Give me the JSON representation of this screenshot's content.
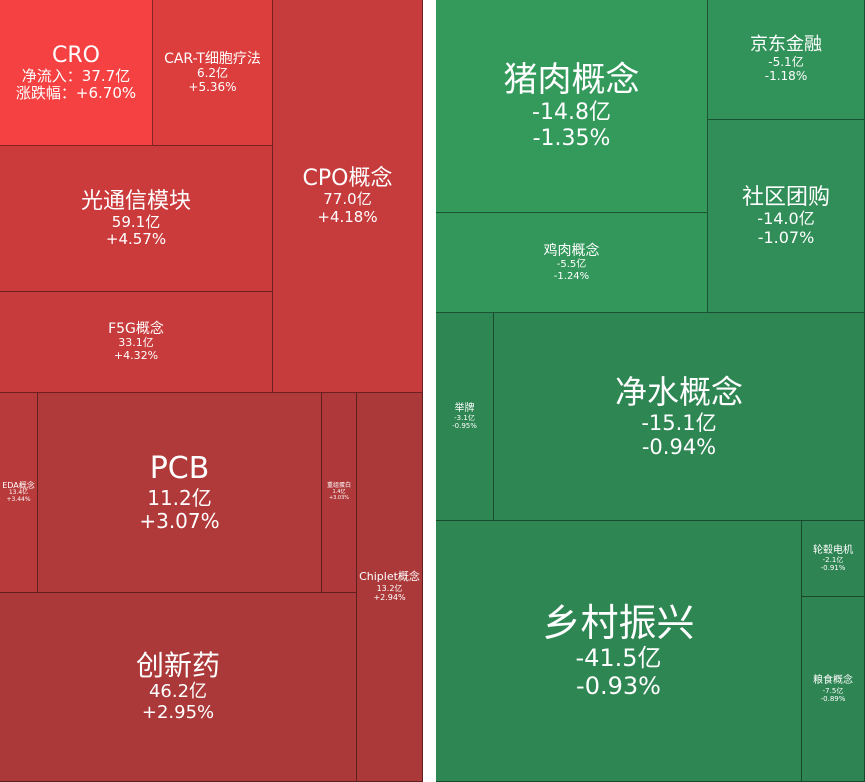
{
  "chart_data": [
    {
      "type": "treemap",
      "panel": "gainers",
      "items": [
        {
          "name": "CRO",
          "flow_label": "净流入：",
          "flow": "37.7亿",
          "change_label": "涨跌幅：",
          "change": "+6.70%",
          "color": "#f54141"
        },
        {
          "name": "CAR-T细胞疗法",
          "flow": "6.2亿",
          "change": "+5.36%",
          "color": "#dc3d3d"
        },
        {
          "name": "CPO概念",
          "flow": "77.0亿",
          "change": "+4.18%",
          "color": "#c63b3c"
        },
        {
          "name": "光通信模块",
          "flow": "59.1亿",
          "change": "+4.57%",
          "color": "#cb3b3c"
        },
        {
          "name": "F5G概念",
          "flow": "33.1亿",
          "change": "+4.32%",
          "color": "#c83b3c"
        },
        {
          "name": "EDA概念",
          "flow": "13.4亿",
          "change": "+3.44%",
          "color": "#b93a3b"
        },
        {
          "name": "PCB",
          "flow": "11.2亿",
          "change": "+3.07%",
          "color": "#b0393a"
        },
        {
          "name": "重组蛋白",
          "flow": "1.4亿",
          "change": "+3.03%",
          "color": "#af393a"
        },
        {
          "name": "Chiplet概念",
          "flow": "13.2亿",
          "change": "+2.94%",
          "color": "#ab393a"
        },
        {
          "name": "创新药",
          "flow": "46.2亿",
          "change": "+2.95%",
          "color": "#ab393a"
        }
      ]
    },
    {
      "type": "treemap",
      "panel": "losers",
      "items": [
        {
          "name": "猪肉概念",
          "flow": "-14.8亿",
          "change": "-1.35%",
          "color": "#349a5c"
        },
        {
          "name": "京东金融",
          "flow": "-5.1亿",
          "change": "-1.18%",
          "color": "#32935a"
        },
        {
          "name": "社区团购",
          "flow": "-14.0亿",
          "change": "-1.07%",
          "color": "#318e58"
        },
        {
          "name": "鸡肉概念",
          "flow": "-5.5亿",
          "change": "-1.24%",
          "color": "#33975b"
        },
        {
          "name": "举牌",
          "flow": "-3.1亿",
          "change": "-0.95%",
          "color": "#2e8653"
        },
        {
          "name": "净水概念",
          "flow": "-15.1亿",
          "change": "-0.94%",
          "color": "#2e8653"
        },
        {
          "name": "轮毂电机",
          "flow": "-2.1亿",
          "change": "-0.91%",
          "color": "#2e8452"
        },
        {
          "name": "乡村振兴",
          "flow": "-41.5亿",
          "change": "-0.93%",
          "color": "#2e8653"
        },
        {
          "name": "粮食概念",
          "flow": "-7.5亿",
          "change": "-0.89%",
          "color": "#2e8452"
        }
      ]
    }
  ]
}
